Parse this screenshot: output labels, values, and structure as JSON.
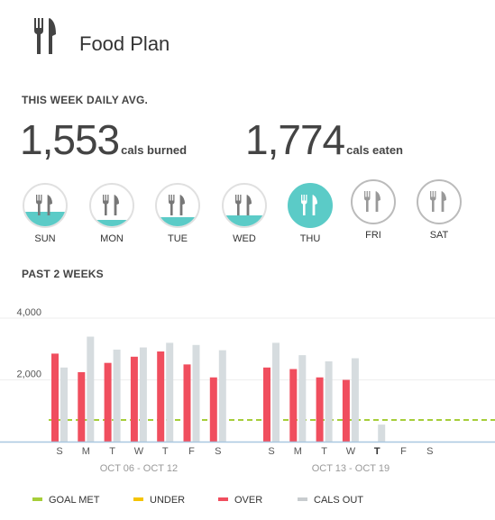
{
  "app": {
    "title": "Food Plan",
    "icon": "fork-knife-icon"
  },
  "week_avg": {
    "label": "THIS WEEK DAILY AVG.",
    "burned": {
      "value": "1,553",
      "unit": "cals burned"
    },
    "eaten": {
      "value": "1,774",
      "unit": "cals eaten"
    }
  },
  "days": [
    {
      "label": "SUN",
      "progress": 0.35,
      "state": "past"
    },
    {
      "label": "MON",
      "progress": 0.15,
      "state": "past"
    },
    {
      "label": "TUE",
      "progress": 0.22,
      "state": "past"
    },
    {
      "label": "WED",
      "progress": 0.26,
      "state": "past"
    },
    {
      "label": "THU",
      "progress": 1.0,
      "state": "today"
    },
    {
      "label": "FRI",
      "progress": 0,
      "state": "future"
    },
    {
      "label": "SAT",
      "progress": 0,
      "state": "future"
    }
  ],
  "past2": {
    "label": "PAST 2 WEEKS"
  },
  "colors": {
    "teal": "#5bcbc7",
    "goal_met": "#a6ce39",
    "under": "#f5c400",
    "over": "#f04e5e",
    "cals_out": "#d6dcdf",
    "baseline": "#a9c7e0"
  },
  "chart_data": {
    "type": "bar",
    "y_ticks": [
      "4,000",
      "2,000"
    ],
    "ylim": [
      0,
      4000
    ],
    "goal_line": 700,
    "weeks": [
      {
        "range_label": "OCT 06 - OCT 12",
        "day_letters": [
          "S",
          "M",
          "T",
          "W",
          "T",
          "F",
          "S"
        ],
        "eaten": [
          2850,
          2250,
          2550,
          2750,
          2920,
          2500,
          2080
        ],
        "eaten_status": [
          "over",
          "over",
          "over",
          "over",
          "over",
          "over",
          "over"
        ],
        "cals_out": [
          2400,
          3400,
          2980,
          3050,
          3200,
          3130,
          2960
        ]
      },
      {
        "range_label": "OCT 13 - OCT 19",
        "day_letters": [
          "S",
          "M",
          "T",
          "W",
          "T",
          "F",
          "S"
        ],
        "eaten": [
          2400,
          2350,
          2080,
          2000,
          null,
          null,
          null
        ],
        "eaten_status": [
          "over",
          "over",
          "over",
          "over",
          null,
          null,
          null
        ],
        "cals_out": [
          3200,
          2800,
          2600,
          2700,
          550,
          null,
          null
        ],
        "current_day_index": 4
      }
    ]
  },
  "legend": [
    {
      "label": "GOAL MET",
      "color": "#a6ce39"
    },
    {
      "label": "UNDER",
      "color": "#f5c400"
    },
    {
      "label": "OVER",
      "color": "#f04e5e"
    },
    {
      "label": "CALS OUT",
      "color": "#c8cccf"
    }
  ]
}
